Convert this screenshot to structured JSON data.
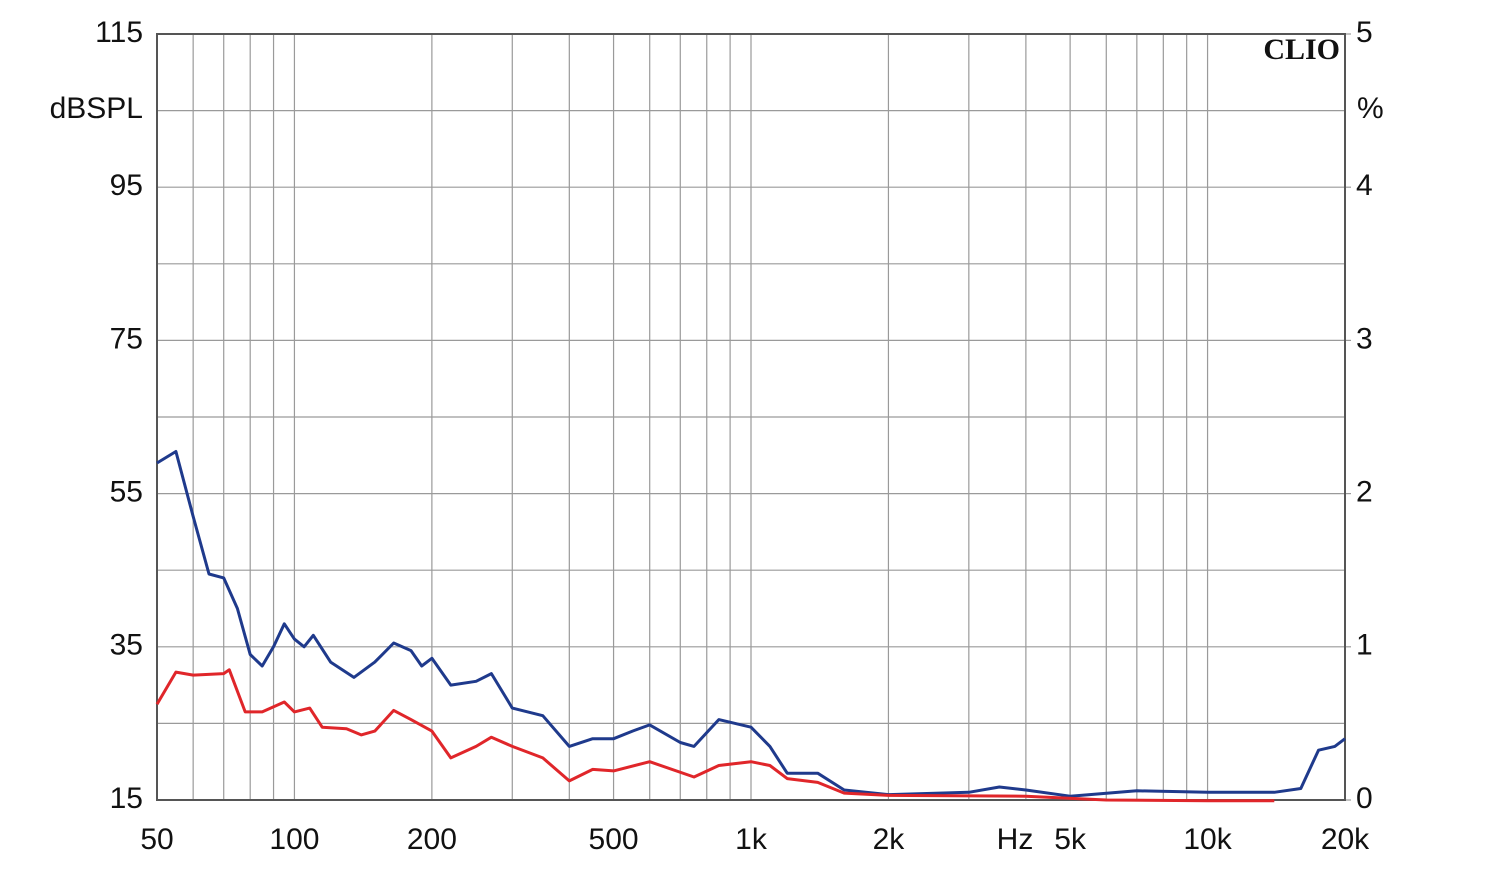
{
  "chart_data": {
    "type": "line",
    "annotation": "CLIO",
    "ylabel": "dBSPL",
    "y2label": "%",
    "xlabel": "Hz",
    "xscale": "log",
    "xlim": [
      50,
      20000
    ],
    "xticks": [
      {
        "value": 50,
        "label": "50"
      },
      {
        "value": 100,
        "label": "100"
      },
      {
        "value": 200,
        "label": "200"
      },
      {
        "value": 500,
        "label": "500"
      },
      {
        "value": 1000,
        "label": "1k"
      },
      {
        "value": 2000,
        "label": "2k"
      },
      {
        "value": 5000,
        "label": "5k"
      },
      {
        "value": 10000,
        "label": "10k"
      },
      {
        "value": 20000,
        "label": "20k"
      }
    ],
    "xminor": [
      60,
      70,
      80,
      90,
      300,
      400,
      600,
      700,
      800,
      900,
      3000,
      4000,
      6000,
      7000,
      8000,
      9000
    ],
    "ylim": [
      15,
      115
    ],
    "yticks": [
      15,
      35,
      55,
      75,
      95,
      115
    ],
    "yminor": [
      25,
      45,
      65,
      85,
      105
    ],
    "y2lim": [
      0,
      5
    ],
    "y2ticks": [
      0,
      1,
      2,
      3,
      4,
      5
    ],
    "grid": true,
    "series": [
      {
        "color": "#1f3a8c",
        "x": [
          50,
          55,
          60,
          65,
          70,
          75,
          80,
          85,
          90,
          95,
          100,
          105,
          110,
          120,
          135,
          150,
          165,
          180,
          190,
          200,
          220,
          250,
          270,
          300,
          350,
          400,
          450,
          500,
          550,
          600,
          700,
          750,
          850,
          1000,
          1100,
          1200,
          1400,
          1600,
          2000,
          3000,
          3500,
          4000,
          5000,
          7000,
          10000,
          14000,
          16000,
          17500,
          19000,
          20000
        ],
        "values": [
          59,
          60.5,
          52,
          44.5,
          44,
          40,
          34,
          32.5,
          35,
          38,
          36,
          35,
          36.5,
          33,
          31,
          33,
          35.5,
          34.5,
          32.5,
          33.5,
          30,
          30.5,
          31.5,
          27,
          26,
          22,
          23,
          23,
          24,
          24.8,
          22.5,
          22,
          25.5,
          24.5,
          22,
          18.5,
          18.5,
          16.3,
          15.7,
          16,
          16.7,
          16.3,
          15.5,
          16.2,
          16,
          16,
          16.5,
          21.5,
          22,
          23
        ]
      },
      {
        "color": "#e0262a",
        "x": [
          50,
          55,
          60,
          70,
          72,
          78,
          85,
          95,
          100,
          108,
          115,
          130,
          140,
          150,
          165,
          180,
          200,
          220,
          250,
          270,
          300,
          350,
          400,
          450,
          500,
          600,
          750,
          850,
          1000,
          1100,
          1200,
          1400,
          1600,
          2000,
          4000,
          6000,
          10000,
          14000
        ],
        "values": [
          27.5,
          31.7,
          31.3,
          31.5,
          32,
          26.5,
          26.5,
          27.8,
          26.5,
          27,
          24.5,
          24.3,
          23.5,
          24,
          26.7,
          25.5,
          24,
          20.5,
          22,
          23.2,
          22,
          20.5,
          17.5,
          19,
          18.8,
          20,
          18,
          19.5,
          20,
          19.5,
          17.8,
          17.3,
          15.9,
          15.6,
          15.5,
          15,
          14.9,
          14.9
        ]
      }
    ]
  }
}
